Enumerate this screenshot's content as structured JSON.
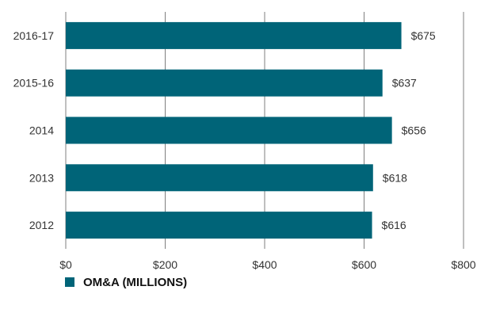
{
  "chart_data": {
    "type": "bar",
    "orientation": "horizontal",
    "categories": [
      "2016-17",
      "2015-16",
      "2014",
      "2013",
      "2012"
    ],
    "series": [
      {
        "name": "OM&A (MILLIONS)",
        "values": [
          675,
          637,
          656,
          618,
          616
        ]
      }
    ],
    "value_labels": [
      "$675",
      "$637",
      "$656",
      "$618",
      "$616"
    ],
    "x_ticks": [
      0,
      200,
      400,
      600,
      800
    ],
    "x_tick_labels": [
      "$0",
      "$200",
      "$400",
      "$600",
      "$800"
    ],
    "xlim": [
      0,
      800
    ],
    "grid": "vertical",
    "legend": "bottom-left",
    "bar_color": "#006478"
  }
}
